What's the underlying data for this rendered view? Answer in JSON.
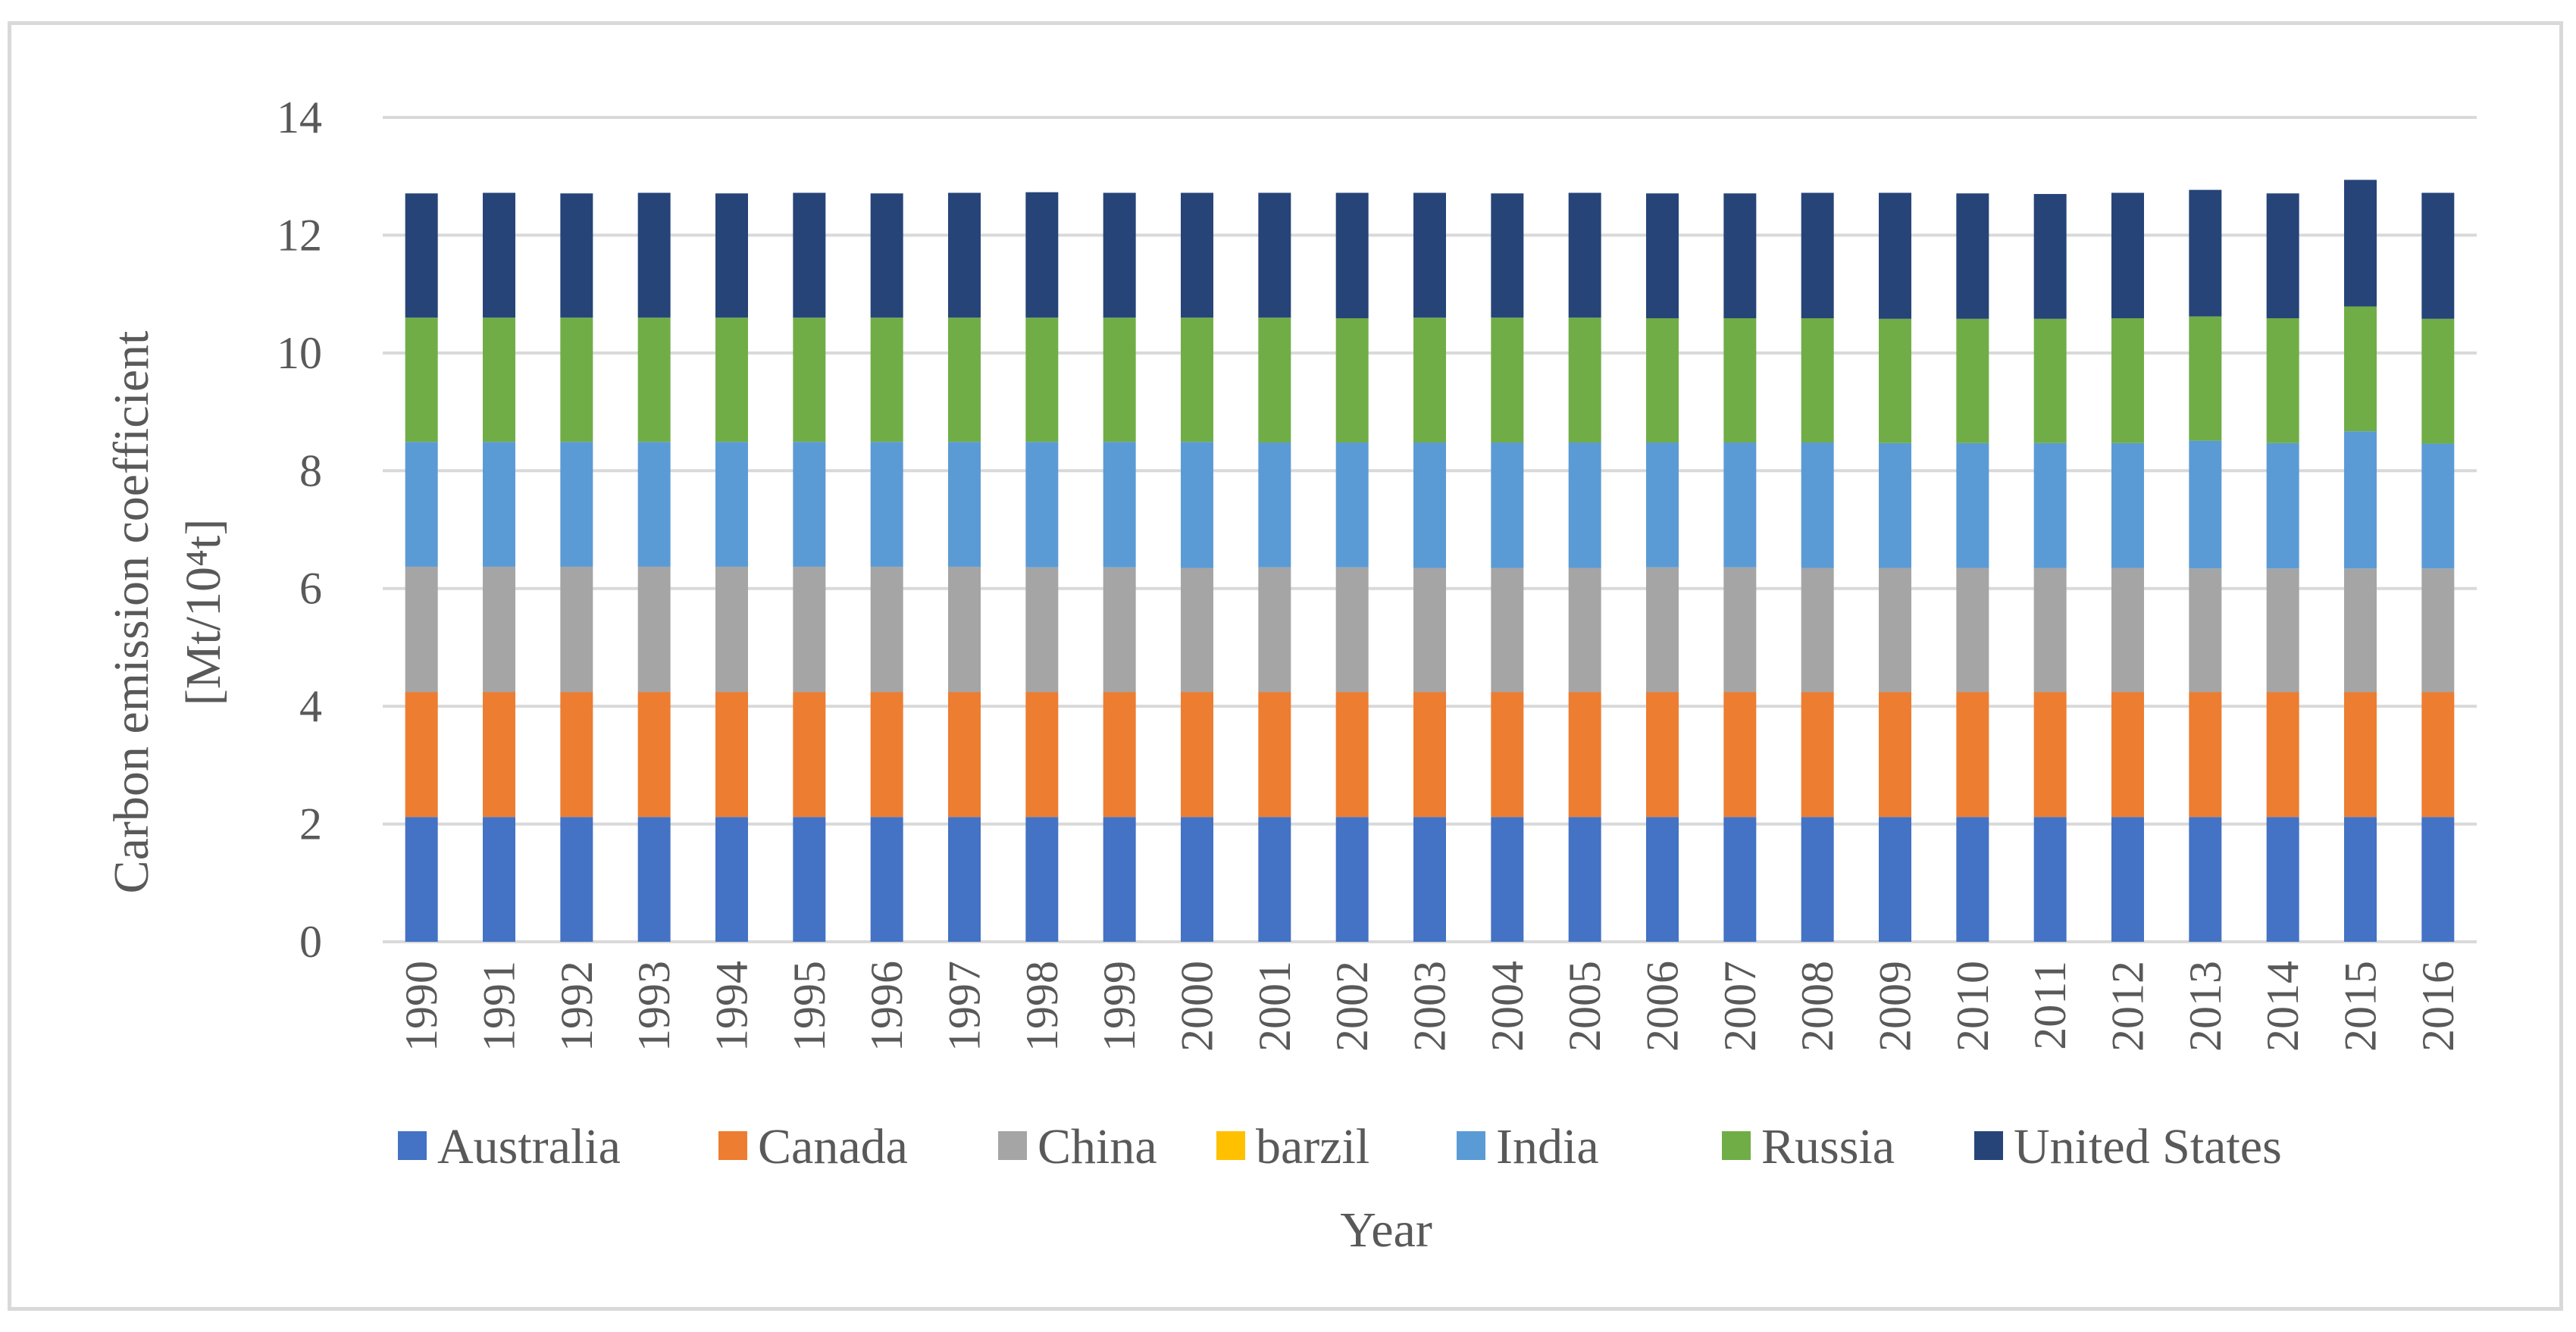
{
  "chart_data": {
    "type": "bar",
    "stacked": true,
    "ylabel_line1": "Carbon emission coefficient",
    "ylabel_line2": "[Mt/10⁴t]",
    "xlabel": "Year",
    "ylim": [
      0,
      14
    ],
    "yticks": [
      "0",
      "2",
      "4",
      "6",
      "8",
      "10",
      "12",
      "14"
    ],
    "grid": true,
    "legend_position": "bottom",
    "categories": [
      "1990",
      "1991",
      "1992",
      "1993",
      "1994",
      "1995",
      "1996",
      "1997",
      "1998",
      "1999",
      "2000",
      "2001",
      "2002",
      "2003",
      "2004",
      "2005",
      "2006",
      "2007",
      "2008",
      "2009",
      "2010",
      "2011",
      "2012",
      "2013",
      "2014",
      "2015",
      "2016"
    ],
    "series": [
      {
        "name": "Australia",
        "color": "#4472c4",
        "values": [
          2.12,
          2.12,
          2.12,
          2.12,
          2.12,
          2.12,
          2.12,
          2.12,
          2.12,
          2.12,
          2.12,
          2.12,
          2.12,
          2.12,
          2.12,
          2.12,
          2.12,
          2.12,
          2.12,
          2.12,
          2.12,
          2.12,
          2.12,
          2.12,
          2.12,
          2.12,
          2.12
        ]
      },
      {
        "name": "Canada",
        "color": "#ed7d31",
        "values": [
          2.12,
          2.12,
          2.12,
          2.12,
          2.12,
          2.12,
          2.12,
          2.12,
          2.12,
          2.12,
          2.12,
          2.12,
          2.12,
          2.12,
          2.12,
          2.12,
          2.12,
          2.12,
          2.12,
          2.12,
          2.12,
          2.12,
          2.12,
          2.12,
          2.12,
          2.12,
          2.12
        ]
      },
      {
        "name": "China",
        "color": "#a5a5a5",
        "values": [
          2.13,
          2.13,
          2.13,
          2.13,
          2.13,
          2.13,
          2.13,
          2.13,
          2.12,
          2.12,
          2.11,
          2.12,
          2.12,
          2.11,
          2.11,
          2.11,
          2.12,
          2.12,
          2.11,
          2.11,
          2.11,
          2.11,
          2.11,
          2.1,
          2.1,
          2.1,
          2.1
        ]
      },
      {
        "name": "barzil",
        "color": "#ffc000",
        "values": [
          0,
          0,
          0,
          0,
          0,
          0,
          0,
          0,
          0,
          0,
          0,
          0,
          0,
          0,
          0,
          0,
          0,
          0,
          0,
          0,
          0,
          0,
          0,
          0,
          0,
          0,
          0
        ]
      },
      {
        "name": "India",
        "color": "#5b9bd5",
        "values": [
          2.12,
          2.12,
          2.12,
          2.12,
          2.12,
          2.12,
          2.12,
          2.12,
          2.13,
          2.13,
          2.14,
          2.12,
          2.12,
          2.13,
          2.13,
          2.13,
          2.12,
          2.12,
          2.13,
          2.12,
          2.12,
          2.12,
          2.12,
          2.17,
          2.13,
          2.33,
          2.12
        ]
      },
      {
        "name": "Russia",
        "color": "#70ad47",
        "values": [
          2.11,
          2.11,
          2.11,
          2.11,
          2.11,
          2.11,
          2.11,
          2.11,
          2.11,
          2.11,
          2.11,
          2.12,
          2.11,
          2.12,
          2.12,
          2.12,
          2.11,
          2.11,
          2.11,
          2.11,
          2.11,
          2.11,
          2.12,
          2.11,
          2.12,
          2.12,
          2.12
        ]
      },
      {
        "name": "United States",
        "color": "#264478",
        "values": [
          2.11,
          2.12,
          2.11,
          2.12,
          2.11,
          2.12,
          2.11,
          2.12,
          2.13,
          2.12,
          2.12,
          2.12,
          2.13,
          2.12,
          2.11,
          2.12,
          2.12,
          2.12,
          2.13,
          2.14,
          2.13,
          2.12,
          2.13,
          2.15,
          2.12,
          2.15,
          2.14
        ]
      }
    ]
  }
}
